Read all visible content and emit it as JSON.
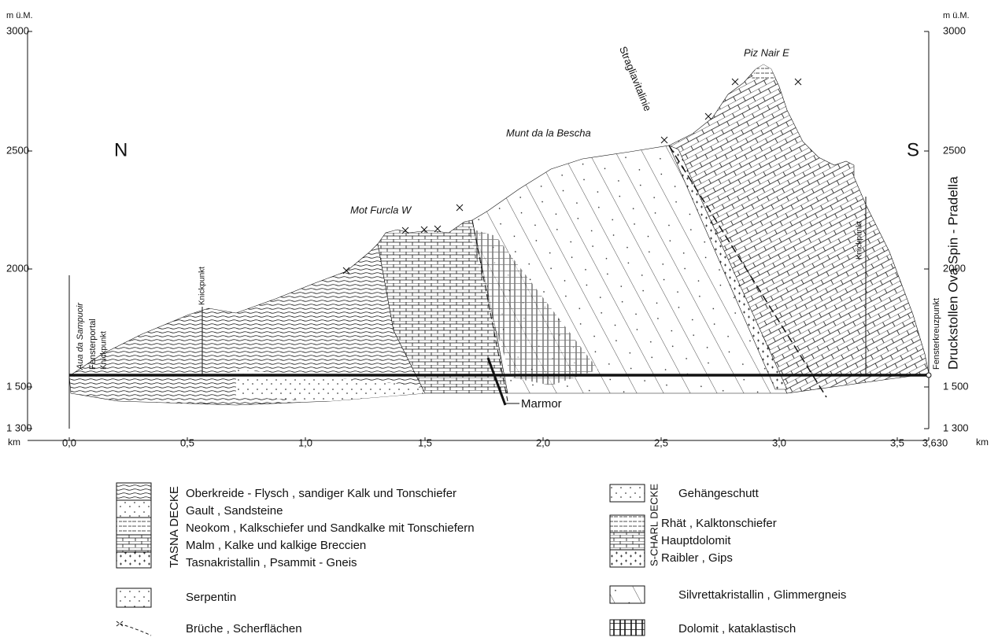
{
  "axes": {
    "left_unit": "m ü.M.",
    "right_unit": "m ü.M.",
    "left_ticks": [
      "3000",
      "2500",
      "2000",
      "1 500",
      "1 300"
    ],
    "right_ticks": [
      "3000",
      "2500",
      "2000",
      "1 500",
      "1 300"
    ],
    "x_unit_left": "km",
    "x_unit_right": "km",
    "x_ticks": [
      "0,0",
      "0,5",
      "1,0",
      "1,5",
      "2,0",
      "2,5",
      "3,0",
      "3,5",
      "3,630"
    ]
  },
  "labels": {
    "north": "N",
    "south": "S",
    "mot_furcla": "Mot Furcla W",
    "munt_da_la_bescha": "Munt da la Bescha",
    "piz_nair": "Piz Nair E",
    "stragliavitalinie": "Stragliavitalinie",
    "aua_da_sampuoir": "Aua da Sampuoir",
    "fensterportal": "Fensterportal",
    "knickpunkt_1": "Knickpunkt",
    "knickpunkt_2": "Knickpunkt",
    "knickpunkt_3": "Knickpunkt",
    "fensterkreuzpunkt": "Fensterkreuzpunkt",
    "druckstollen": "Druckstollen Ova Spin - Pradella",
    "marmor": "Marmor"
  },
  "legend": {
    "tasna": {
      "group": "TASNA DECKE",
      "items": [
        "Oberkreide - Flysch , sandiger Kalk und Tonschiefer",
        "Gault , Sandsteine",
        "Neokom , Kalkschiefer und Sandkalke mit Tonschiefern",
        "Malm , Kalke und kalkige Breccien",
        "Tasnakristallin , Psammit - Gneis"
      ]
    },
    "serpentin": "Serpentin",
    "brueche": "Brüche , Scherflächen",
    "gehaengeschutt": "Gehängeschutt",
    "scharl": {
      "group": "S-CHARL DECKE",
      "items": [
        "Rhät , Kalktonschiefer",
        "Hauptdolomit",
        "Raibler , Gips"
      ]
    },
    "silvretta": "Silvrettakristallin , Glimmergneis",
    "dolomit": "Dolomit , kataklastisch"
  }
}
